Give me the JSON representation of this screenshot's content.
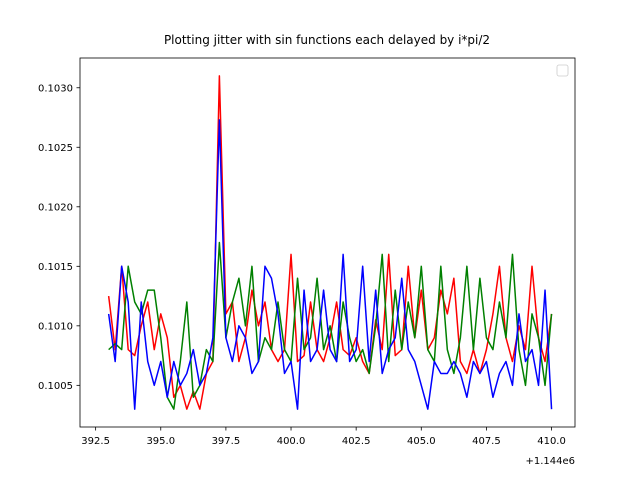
{
  "chart_data": {
    "type": "line",
    "title": "Plotting jitter with sin functions each delayed by i*pi/2",
    "x_offset_label": "+1.144e6",
    "x": [
      393.0,
      393.25,
      393.5,
      393.75,
      394.0,
      394.25,
      394.5,
      394.75,
      395.0,
      395.25,
      395.5,
      395.75,
      396.0,
      396.25,
      396.5,
      396.75,
      397.0,
      397.25,
      397.5,
      397.75,
      398.0,
      398.25,
      398.5,
      398.75,
      399.0,
      399.25,
      399.5,
      399.75,
      400.0,
      400.25,
      400.5,
      400.75,
      401.0,
      401.25,
      401.5,
      401.75,
      402.0,
      402.25,
      402.5,
      402.75,
      403.0,
      403.25,
      403.5,
      403.75,
      404.0,
      404.25,
      404.5,
      404.75,
      405.0,
      405.25,
      405.5,
      405.75,
      406.0,
      406.25,
      406.5,
      406.75,
      407.0,
      407.25,
      407.5,
      407.75,
      408.0,
      408.25,
      408.5,
      408.75,
      409.0,
      409.25,
      409.5,
      409.75,
      410.0
    ],
    "series": [
      {
        "color": "#ff0000",
        "values": [
          0.10125,
          0.1008,
          0.1015,
          0.1008,
          0.10075,
          0.101,
          0.1012,
          0.1008,
          0.1011,
          0.1009,
          0.1004,
          0.1005,
          0.1003,
          0.10045,
          0.1003,
          0.1006,
          0.1007,
          0.1031,
          0.1011,
          0.1012,
          0.1007,
          0.1009,
          0.1013,
          0.101,
          0.1012,
          0.1008,
          0.1007,
          0.1008,
          0.1016,
          0.1007,
          0.10075,
          0.1012,
          0.1008,
          0.1007,
          0.1009,
          0.1012,
          0.1008,
          0.10075,
          0.1009,
          0.1007,
          0.1006,
          0.10105,
          0.1008,
          0.1016,
          0.10075,
          0.1008,
          0.1015,
          0.1009,
          0.1013,
          0.1008,
          0.1009,
          0.1013,
          0.1011,
          0.1014,
          0.1007,
          0.1006,
          0.1008,
          0.1006,
          0.1008,
          0.1011,
          0.1015,
          0.1009,
          0.1007,
          0.101,
          0.1008,
          0.1015,
          0.1009,
          0.1007,
          0.1011
        ]
      },
      {
        "color": "#008000",
        "values": [
          0.1008,
          0.10085,
          0.1008,
          0.1015,
          0.1012,
          0.1011,
          0.1013,
          0.1013,
          0.1009,
          0.1004,
          0.1003,
          0.1007,
          0.1012,
          0.1004,
          0.1005,
          0.1008,
          0.1007,
          0.1017,
          0.1009,
          0.1012,
          0.1014,
          0.101,
          0.1015,
          0.1007,
          0.1009,
          0.1008,
          0.1012,
          0.1008,
          0.1007,
          0.1014,
          0.1008,
          0.1009,
          0.1014,
          0.1008,
          0.101,
          0.1007,
          0.1012,
          0.1009,
          0.1007,
          0.1008,
          0.1006,
          0.101,
          0.1016,
          0.1007,
          0.1013,
          0.1008,
          0.1012,
          0.1009,
          0.1015,
          0.1008,
          0.1007,
          0.1015,
          0.1008,
          0.1006,
          0.1009,
          0.1015,
          0.1008,
          0.1014,
          0.1009,
          0.1008,
          0.1012,
          0.1009,
          0.1016,
          0.1008,
          0.1005,
          0.1011,
          0.1009,
          0.1005,
          0.1011
        ]
      },
      {
        "color": "#0000ff",
        "values": [
          0.1011,
          0.1007,
          0.1015,
          0.1012,
          0.1003,
          0.1012,
          0.1007,
          0.1005,
          0.1007,
          0.1004,
          0.1007,
          0.1005,
          0.1006,
          0.1008,
          0.1005,
          0.1006,
          0.1009,
          0.10273,
          0.1009,
          0.1007,
          0.101,
          0.1009,
          0.1006,
          0.1007,
          0.1015,
          0.1014,
          0.1011,
          0.1006,
          0.1007,
          0.1003,
          0.1013,
          0.1007,
          0.1008,
          0.1013,
          0.1008,
          0.1007,
          0.1016,
          0.1007,
          0.1008,
          0.1015,
          0.1007,
          0.1013,
          0.1006,
          0.1008,
          0.1009,
          0.1014,
          0.1008,
          0.1007,
          0.1005,
          0.1003,
          0.1007,
          0.1006,
          0.1006,
          0.1007,
          0.1006,
          0.1004,
          0.1007,
          0.1006,
          0.1007,
          0.1004,
          0.1006,
          0.1007,
          0.1005,
          0.1011,
          0.1007,
          0.1008,
          0.1005,
          0.1013,
          0.1003
        ]
      }
    ],
    "xlim": [
      391.9,
      410.9
    ],
    "ylim": [
      0.10015,
      0.10325
    ],
    "xticks": [
      {
        "value": 392.5,
        "label": "392.5"
      },
      {
        "value": 395,
        "label": "395.0"
      },
      397.5,
      {
        "value": 400,
        "label": "400.0"
      },
      402.5,
      {
        "value": 405,
        "label": "405.0"
      },
      407.5,
      {
        "value": 410,
        "label": "410.0"
      }
    ],
    "yticks": [
      0.1005,
      {
        "value": 0.101,
        "label": "0.1010"
      },
      0.1015,
      {
        "value": 0.102,
        "label": "0.1020"
      },
      0.1025,
      {
        "value": 0.103,
        "label": "0.1030"
      }
    ],
    "legend": "upper right",
    "grid": false
  }
}
